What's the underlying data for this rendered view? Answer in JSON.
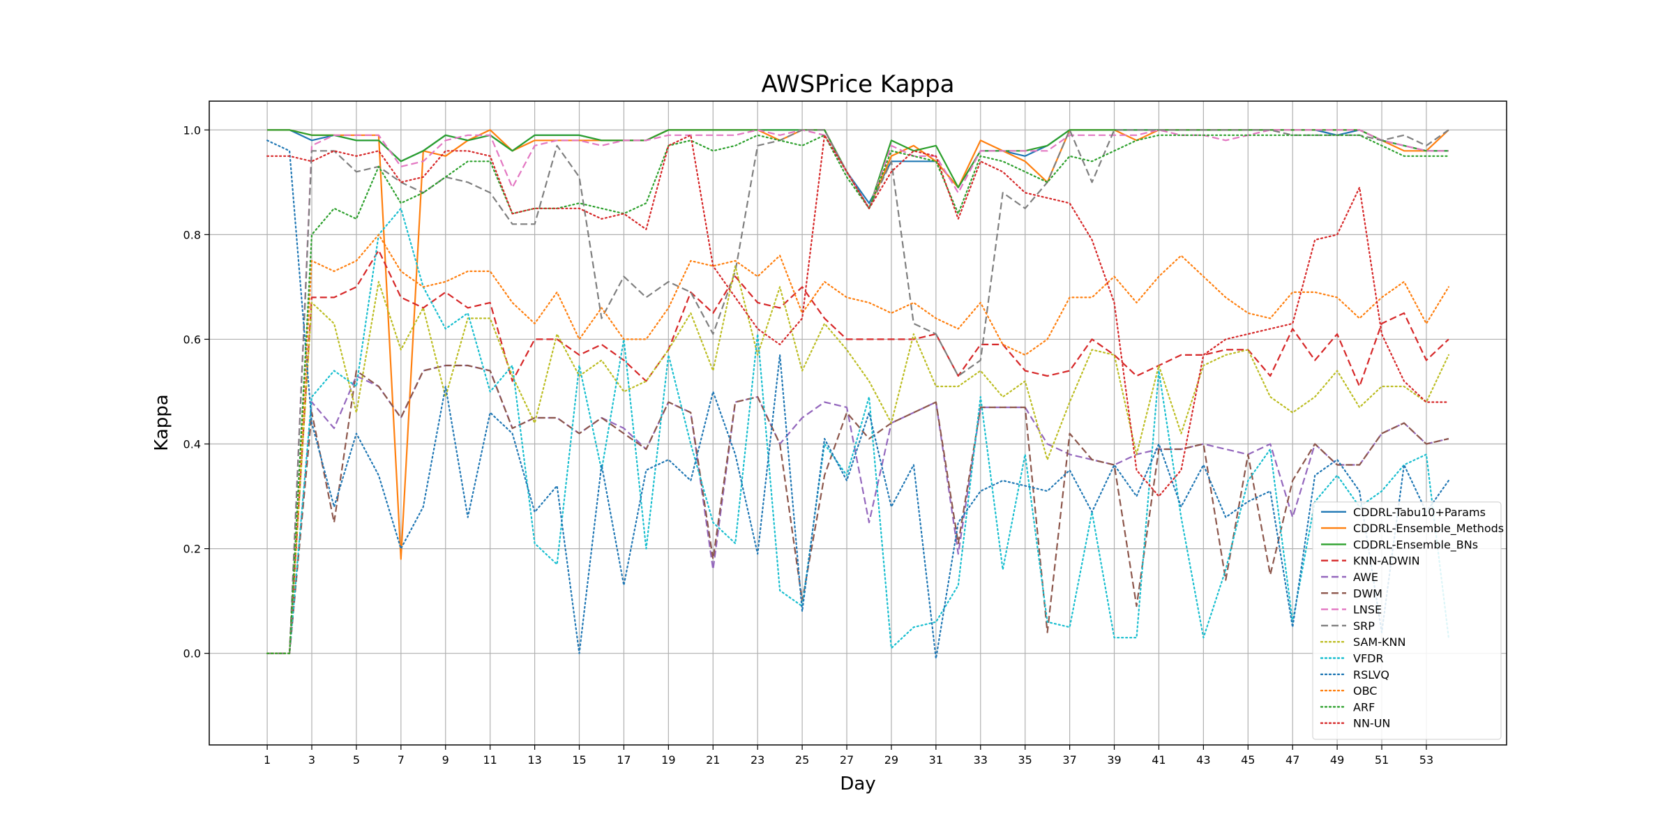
{
  "chart_data": {
    "type": "line",
    "title": "AWSPrice Kappa",
    "xlabel": "Day",
    "ylabel": "Kappa",
    "xlim": [
      -1.6,
      56.6
    ],
    "ylim": [
      -0.175,
      1.055
    ],
    "xticks": [
      1,
      3,
      5,
      7,
      9,
      11,
      13,
      15,
      17,
      19,
      21,
      23,
      25,
      27,
      29,
      31,
      33,
      35,
      37,
      39,
      41,
      43,
      45,
      47,
      49,
      51,
      53
    ],
    "yticks": [
      0.0,
      0.2,
      0.4,
      0.6,
      0.8,
      1.0
    ],
    "grid": true,
    "legend_position": "lower-right",
    "x_start": 1,
    "series": [
      {
        "name": "CDDRL-Tabu10+Params",
        "color": "#1f77b4",
        "dash": "solid",
        "values": [
          1.0,
          1.0,
          0.98,
          0.99,
          0.98,
          0.98,
          0.94,
          0.96,
          0.99,
          0.98,
          0.99,
          0.96,
          0.99,
          0.99,
          0.99,
          0.98,
          0.98,
          0.98,
          1.0,
          1.0,
          1.0,
          1.0,
          1.0,
          1.0,
          1.0,
          1.0,
          0.92,
          0.86,
          0.94,
          0.94,
          0.94,
          0.89,
          0.96,
          0.96,
          0.95,
          0.97,
          1.0,
          1.0,
          1.0,
          1.0,
          1.0,
          1.0,
          1.0,
          1.0,
          1.0,
          1.0,
          1.0,
          1.0,
          0.99,
          1.0,
          0.98,
          0.97,
          0.96,
          0.96
        ]
      },
      {
        "name": "CDDRL-Ensemble_Methods",
        "color": "#ff7f0e",
        "dash": "solid",
        "values": [
          1.0,
          1.0,
          0.99,
          0.99,
          0.99,
          0.99,
          0.18,
          0.96,
          0.95,
          0.98,
          1.0,
          0.96,
          0.98,
          0.98,
          0.98,
          0.98,
          0.98,
          0.98,
          1.0,
          1.0,
          1.0,
          1.0,
          1.0,
          0.98,
          1.0,
          1.0,
          0.92,
          0.85,
          0.95,
          0.97,
          0.94,
          0.89,
          0.98,
          0.96,
          0.94,
          0.9,
          1.0,
          1.0,
          1.0,
          0.98,
          1.0,
          1.0,
          1.0,
          1.0,
          1.0,
          1.0,
          1.0,
          1.0,
          1.0,
          1.0,
          0.98,
          0.96,
          0.96,
          1.0
        ]
      },
      {
        "name": "CDDRL-Ensemble_BNs",
        "color": "#2ca02c",
        "dash": "solid",
        "values": [
          1.0,
          1.0,
          0.99,
          0.99,
          0.98,
          0.98,
          0.94,
          0.96,
          0.99,
          0.98,
          0.99,
          0.96,
          0.99,
          0.99,
          0.99,
          0.98,
          0.98,
          0.98,
          1.0,
          1.0,
          1.0,
          1.0,
          1.0,
          1.0,
          1.0,
          1.0,
          0.92,
          0.85,
          0.98,
          0.96,
          0.97,
          0.89,
          0.96,
          0.96,
          0.96,
          0.97,
          1.0,
          1.0,
          1.0,
          1.0,
          1.0,
          1.0,
          1.0,
          1.0,
          1.0,
          1.0,
          1.0,
          1.0,
          1.0,
          1.0,
          0.98,
          0.97,
          0.96,
          0.96
        ]
      },
      {
        "name": "KNN-ADWIN",
        "color": "#d62728",
        "dash": "dashed",
        "values": [
          0.0,
          0.0,
          0.68,
          0.68,
          0.7,
          0.77,
          0.68,
          0.66,
          0.69,
          0.66,
          0.67,
          0.52,
          0.6,
          0.6,
          0.57,
          0.59,
          0.56,
          0.52,
          0.58,
          0.69,
          0.65,
          0.72,
          0.67,
          0.66,
          0.7,
          0.64,
          0.6,
          0.6,
          0.6,
          0.6,
          0.61,
          0.53,
          0.59,
          0.59,
          0.54,
          0.53,
          0.54,
          0.6,
          0.57,
          0.53,
          0.55,
          0.57,
          0.57,
          0.58,
          0.58,
          0.53,
          0.62,
          0.56,
          0.61,
          0.51,
          0.63,
          0.65,
          0.56,
          0.6
        ]
      },
      {
        "name": "AWE",
        "color": "#9467bd",
        "dash": "dashed",
        "values": [
          0.0,
          0.0,
          0.48,
          0.43,
          0.53,
          0.51,
          0.45,
          0.54,
          0.55,
          0.55,
          0.54,
          0.43,
          0.45,
          0.45,
          0.42,
          0.45,
          0.43,
          0.39,
          0.48,
          0.46,
          0.16,
          0.48,
          0.49,
          0.4,
          0.45,
          0.48,
          0.47,
          0.25,
          0.44,
          0.46,
          0.48,
          0.19,
          0.47,
          0.47,
          0.47,
          0.4,
          0.38,
          0.37,
          0.36,
          0.38,
          0.39,
          0.39,
          0.4,
          0.39,
          0.38,
          0.4,
          0.26,
          0.4,
          0.36,
          0.36,
          0.42,
          0.44,
          0.4,
          0.41
        ]
      },
      {
        "name": "DWM",
        "color": "#8c564b",
        "dash": "dashed",
        "values": [
          0.0,
          0.0,
          0.46,
          0.25,
          0.54,
          0.51,
          0.45,
          0.54,
          0.55,
          0.55,
          0.54,
          0.43,
          0.45,
          0.45,
          0.42,
          0.45,
          0.42,
          0.39,
          0.48,
          0.46,
          0.18,
          0.48,
          0.49,
          0.4,
          0.1,
          0.34,
          0.46,
          0.41,
          0.44,
          0.46,
          0.48,
          0.21,
          0.47,
          0.47,
          0.47,
          0.04,
          0.42,
          0.37,
          0.36,
          0.09,
          0.39,
          0.39,
          0.4,
          0.14,
          0.38,
          0.15,
          0.33,
          0.4,
          0.36,
          0.36,
          0.42,
          0.44,
          0.4,
          0.41
        ]
      },
      {
        "name": "LNSE",
        "color": "#e377c2",
        "dash": "dashed",
        "values": [
          0.0,
          0.0,
          0.97,
          0.99,
          0.99,
          0.99,
          0.93,
          0.94,
          0.98,
          0.99,
          0.99,
          0.89,
          0.97,
          0.98,
          0.98,
          0.97,
          0.98,
          0.98,
          0.99,
          0.99,
          0.99,
          0.99,
          1.0,
          0.99,
          1.0,
          0.99,
          0.92,
          0.85,
          0.97,
          0.95,
          0.95,
          0.88,
          0.96,
          0.96,
          0.96,
          0.96,
          0.99,
          0.99,
          0.99,
          0.99,
          1.0,
          0.99,
          0.99,
          0.98,
          0.99,
          1.0,
          1.0,
          1.0,
          1.0,
          1.0,
          0.98,
          0.97,
          0.96,
          0.96
        ]
      },
      {
        "name": "SRP",
        "color": "#7f7f7f",
        "dash": "dashed",
        "values": [
          0.0,
          0.0,
          0.96,
          0.96,
          0.92,
          0.93,
          0.9,
          0.88,
          0.91,
          0.9,
          0.88,
          0.82,
          0.82,
          0.97,
          0.91,
          0.64,
          0.72,
          0.68,
          0.71,
          0.69,
          0.61,
          0.73,
          0.97,
          0.98,
          1.0,
          1.0,
          0.92,
          0.85,
          0.94,
          0.63,
          0.61,
          0.53,
          0.56,
          0.88,
          0.85,
          0.9,
          1.0,
          0.9,
          1.0,
          1.0,
          1.0,
          1.0,
          1.0,
          1.0,
          1.0,
          1.0,
          0.99,
          0.99,
          0.99,
          0.99,
          0.98,
          0.99,
          0.97,
          1.0
        ]
      },
      {
        "name": "SAM-KNN",
        "color": "#bcbd22",
        "dash": "dotted",
        "values": [
          0.0,
          0.0,
          0.67,
          0.63,
          0.46,
          0.71,
          0.58,
          0.66,
          0.49,
          0.64,
          0.64,
          0.53,
          0.44,
          0.61,
          0.53,
          0.56,
          0.5,
          0.52,
          0.58,
          0.65,
          0.54,
          0.74,
          0.57,
          0.7,
          0.54,
          0.63,
          0.58,
          0.52,
          0.44,
          0.61,
          0.51,
          0.51,
          0.54,
          0.49,
          0.52,
          0.37,
          0.48,
          0.58,
          0.57,
          0.38,
          0.55,
          0.42,
          0.55,
          0.57,
          0.58,
          0.49,
          0.46,
          0.49,
          0.54,
          0.47,
          0.51,
          0.51,
          0.48,
          0.57
        ]
      },
      {
        "name": "VFDR",
        "color": "#17becf",
        "dash": "dotted",
        "values": [
          0.0,
          0.0,
          0.49,
          0.54,
          0.51,
          0.8,
          0.85,
          0.7,
          0.62,
          0.65,
          0.5,
          0.55,
          0.21,
          0.17,
          0.55,
          0.35,
          0.6,
          0.2,
          0.57,
          0.4,
          0.25,
          0.21,
          0.61,
          0.12,
          0.09,
          0.4,
          0.34,
          0.49,
          0.01,
          0.05,
          0.06,
          0.13,
          0.49,
          0.16,
          0.38,
          0.06,
          0.05,
          0.27,
          0.03,
          0.03,
          0.54,
          0.26,
          0.03,
          0.16,
          0.33,
          0.39,
          0.06,
          0.29,
          0.34,
          0.28,
          0.31,
          0.36,
          0.38,
          0.03
        ]
      },
      {
        "name": "RSLVQ",
        "color": "#1f77b4",
        "dash": "dotted",
        "values": [
          0.98,
          0.96,
          0.44,
          0.28,
          0.42,
          0.34,
          0.2,
          0.28,
          0.51,
          0.26,
          0.46,
          0.42,
          0.27,
          0.32,
          0.0,
          0.36,
          0.13,
          0.35,
          0.37,
          0.33,
          0.5,
          0.38,
          0.19,
          0.57,
          0.08,
          0.41,
          0.33,
          0.46,
          0.28,
          0.36,
          -0.01,
          0.25,
          0.31,
          0.33,
          0.32,
          0.31,
          0.35,
          0.27,
          0.36,
          0.3,
          0.4,
          0.28,
          0.36,
          0.26,
          0.29,
          0.31,
          0.05,
          0.34,
          0.37,
          0.31,
          0.04,
          0.36,
          0.27,
          0.33
        ]
      },
      {
        "name": "OBC",
        "color": "#ff7f0e",
        "dash": "dotted",
        "values": [
          0.0,
          0.0,
          0.75,
          0.73,
          0.75,
          0.8,
          0.73,
          0.7,
          0.71,
          0.73,
          0.73,
          0.67,
          0.63,
          0.69,
          0.6,
          0.66,
          0.6,
          0.6,
          0.66,
          0.75,
          0.74,
          0.75,
          0.72,
          0.76,
          0.65,
          0.71,
          0.68,
          0.67,
          0.65,
          0.67,
          0.64,
          0.62,
          0.67,
          0.59,
          0.57,
          0.6,
          0.68,
          0.68,
          0.72,
          0.67,
          0.72,
          0.76,
          0.72,
          0.68,
          0.65,
          0.64,
          0.69,
          0.69,
          0.68,
          0.64,
          0.68,
          0.71,
          0.63,
          0.7
        ]
      },
      {
        "name": "ARF",
        "color": "#2ca02c",
        "dash": "dotted",
        "values": [
          0.0,
          0.0,
          0.8,
          0.85,
          0.83,
          0.93,
          0.86,
          0.88,
          0.91,
          0.94,
          0.94,
          0.84,
          0.85,
          0.85,
          0.86,
          0.85,
          0.84,
          0.86,
          0.97,
          0.98,
          0.96,
          0.97,
          0.99,
          0.98,
          0.97,
          0.99,
          0.91,
          0.85,
          0.96,
          0.95,
          0.94,
          0.84,
          0.95,
          0.94,
          0.92,
          0.9,
          0.95,
          0.94,
          0.96,
          0.98,
          0.99,
          0.99,
          0.99,
          0.99,
          0.99,
          0.99,
          0.99,
          0.99,
          0.99,
          0.99,
          0.97,
          0.95,
          0.95,
          0.95
        ]
      },
      {
        "name": "NN-UN",
        "color": "#d62728",
        "dash": "dotted",
        "values": [
          0.95,
          0.95,
          0.94,
          0.96,
          0.95,
          0.96,
          0.9,
          0.91,
          0.96,
          0.96,
          0.95,
          0.84,
          0.85,
          0.85,
          0.85,
          0.83,
          0.84,
          0.81,
          0.97,
          0.99,
          0.74,
          0.68,
          0.62,
          0.59,
          0.64,
          0.99,
          0.92,
          0.85,
          0.92,
          0.96,
          0.95,
          0.83,
          0.94,
          0.92,
          0.88,
          0.87,
          0.86,
          0.79,
          0.67,
          0.35,
          0.3,
          0.35,
          0.57,
          0.6,
          0.61,
          0.62,
          0.63,
          0.79,
          0.8,
          0.89,
          0.61,
          0.52,
          0.48,
          0.48
        ]
      }
    ]
  }
}
